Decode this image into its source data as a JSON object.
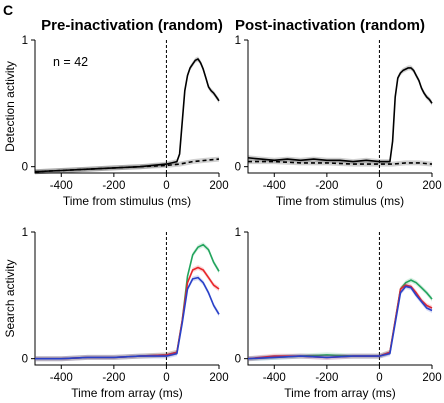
{
  "figure": {
    "panel_letter": "C",
    "col_titles": [
      "Pre-inactivation (random)",
      "Post-inactivation (random)"
    ],
    "note": "n = 42"
  },
  "chart_data": [
    {
      "type": "line",
      "title": "Pre-inactivation (random)",
      "ylabel": "Detection activity",
      "xlabel": "Time from stimulus (ms)",
      "xlim": [
        -500,
        200
      ],
      "ylim": [
        -0.05,
        1.0
      ],
      "xticks": [
        -400,
        -200,
        0,
        200
      ],
      "yticks": [
        0,
        1
      ],
      "annotation": "n = 42",
      "stimulus_line_x": 0,
      "series": [
        {
          "style": "solid",
          "color": "#000000",
          "x": [
            -500,
            -400,
            -300,
            -200,
            -100,
            0,
            20,
            40,
            50,
            60,
            70,
            80,
            90,
            100,
            110,
            120,
            130,
            140,
            150,
            160,
            170,
            180,
            190,
            200
          ],
          "y": [
            -0.04,
            -0.03,
            -0.02,
            -0.01,
            0.0,
            0.02,
            0.03,
            0.04,
            0.1,
            0.35,
            0.6,
            0.72,
            0.78,
            0.81,
            0.84,
            0.85,
            0.82,
            0.77,
            0.7,
            0.63,
            0.6,
            0.58,
            0.55,
            0.52
          ]
        },
        {
          "style": "dashed",
          "color": "#000000",
          "x": [
            -500,
            -400,
            -300,
            -200,
            -100,
            0,
            50,
            100,
            150,
            200
          ],
          "y": [
            -0.04,
            -0.03,
            -0.02,
            -0.01,
            0.0,
            0.01,
            0.02,
            0.04,
            0.05,
            0.06
          ]
        }
      ]
    },
    {
      "type": "line",
      "title": "Post-inactivation (random)",
      "ylabel": "",
      "xlabel": "Time from stimulus (ms)",
      "xlim": [
        -500,
        200
      ],
      "ylim": [
        -0.05,
        1.0
      ],
      "xticks": [
        -400,
        -200,
        0,
        200
      ],
      "yticks": [
        0,
        1
      ],
      "stimulus_line_x": 0,
      "series": [
        {
          "style": "solid",
          "color": "#000000",
          "x": [
            -500,
            -450,
            -400,
            -350,
            -300,
            -250,
            -200,
            -150,
            -100,
            -50,
            0,
            40,
            50,
            60,
            70,
            80,
            90,
            100,
            110,
            120,
            130,
            140,
            150,
            160,
            170,
            180,
            190,
            200
          ],
          "y": [
            0.07,
            0.06,
            0.05,
            0.06,
            0.05,
            0.06,
            0.05,
            0.05,
            0.04,
            0.05,
            0.04,
            0.04,
            0.2,
            0.55,
            0.7,
            0.74,
            0.76,
            0.77,
            0.78,
            0.78,
            0.76,
            0.72,
            0.68,
            0.62,
            0.58,
            0.55,
            0.53,
            0.5
          ]
        },
        {
          "style": "dashed",
          "color": "#000000",
          "x": [
            -500,
            -400,
            -300,
            -200,
            -100,
            0,
            50,
            100,
            150,
            200
          ],
          "y": [
            0.04,
            0.04,
            0.03,
            0.03,
            0.02,
            0.02,
            0.02,
            0.03,
            0.03,
            0.02
          ]
        }
      ]
    },
    {
      "type": "line",
      "title": "",
      "ylabel": "Search activity",
      "xlabel": "Time from array (ms)",
      "xlim": [
        -500,
        200
      ],
      "ylim": [
        -0.05,
        1.0
      ],
      "xticks": [
        -400,
        -200,
        0,
        200
      ],
      "yticks": [
        0,
        1
      ],
      "array_line_x": 0,
      "series": [
        {
          "color": "#22a45d",
          "x": [
            -500,
            -400,
            -300,
            -200,
            -100,
            0,
            40,
            60,
            80,
            100,
            120,
            140,
            160,
            180,
            200
          ],
          "y": [
            0.0,
            0.0,
            0.01,
            0.01,
            0.02,
            0.03,
            0.05,
            0.3,
            0.65,
            0.82,
            0.88,
            0.9,
            0.86,
            0.76,
            0.69
          ]
        },
        {
          "color": "#e8262a",
          "x": [
            -500,
            -400,
            -300,
            -200,
            -100,
            0,
            40,
            60,
            80,
            100,
            120,
            140,
            160,
            180,
            200
          ],
          "y": [
            0.0,
            0.0,
            0.01,
            0.01,
            0.02,
            0.03,
            0.05,
            0.3,
            0.6,
            0.7,
            0.72,
            0.7,
            0.64,
            0.58,
            0.55
          ]
        },
        {
          "color": "#2940c8",
          "x": [
            -500,
            -400,
            -300,
            -200,
            -100,
            0,
            40,
            60,
            80,
            100,
            120,
            140,
            160,
            180,
            200
          ],
          "y": [
            0.0,
            0.0,
            0.01,
            0.01,
            0.02,
            0.02,
            0.04,
            0.28,
            0.55,
            0.63,
            0.64,
            0.6,
            0.52,
            0.42,
            0.35
          ]
        }
      ]
    },
    {
      "type": "line",
      "title": "",
      "ylabel": "",
      "xlabel": "Time from array (ms)",
      "xlim": [
        -500,
        200
      ],
      "ylim": [
        -0.05,
        1.0
      ],
      "xticks": [
        -400,
        -200,
        0,
        200
      ],
      "yticks": [
        0,
        1
      ],
      "array_line_x": 0,
      "series": [
        {
          "color": "#22a45d",
          "x": [
            -500,
            -400,
            -300,
            -200,
            -100,
            0,
            40,
            60,
            80,
            100,
            120,
            140,
            160,
            180,
            200
          ],
          "y": [
            0.0,
            0.01,
            0.02,
            0.03,
            0.02,
            0.02,
            0.05,
            0.3,
            0.55,
            0.6,
            0.62,
            0.6,
            0.56,
            0.52,
            0.47
          ]
        },
        {
          "color": "#e8262a",
          "x": [
            -500,
            -400,
            -300,
            -200,
            -100,
            0,
            40,
            60,
            80,
            100,
            120,
            140,
            160,
            180,
            200
          ],
          "y": [
            0.0,
            0.02,
            0.02,
            0.01,
            0.02,
            0.02,
            0.05,
            0.3,
            0.55,
            0.58,
            0.57,
            0.52,
            0.46,
            0.42,
            0.4
          ]
        },
        {
          "color": "#2940c8",
          "x": [
            -500,
            -400,
            -300,
            -200,
            -100,
            0,
            40,
            60,
            80,
            100,
            120,
            140,
            160,
            180,
            200
          ],
          "y": [
            0.0,
            0.01,
            0.02,
            0.01,
            0.02,
            0.02,
            0.04,
            0.28,
            0.52,
            0.57,
            0.56,
            0.5,
            0.45,
            0.4,
            0.38
          ]
        }
      ]
    }
  ]
}
